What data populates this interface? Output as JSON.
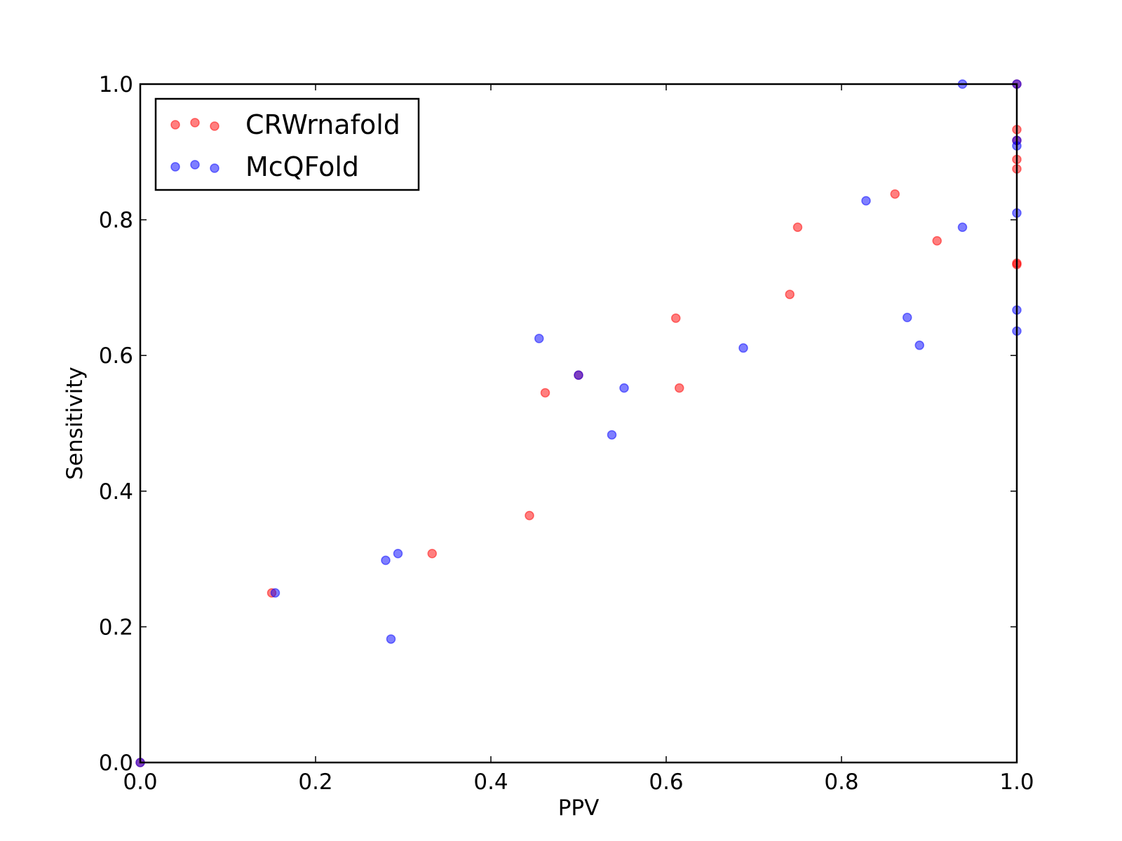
{
  "chart_data": {
    "type": "scatter",
    "title": "",
    "xlabel": "PPV",
    "ylabel": "Sensitivity",
    "xlim": [
      0.0,
      1.0
    ],
    "ylim": [
      0.0,
      1.0
    ],
    "xticks": [
      "0.0",
      "0.2",
      "0.4",
      "0.6",
      "0.8",
      "1.0"
    ],
    "yticks": [
      "0.0",
      "0.2",
      "0.4",
      "0.6",
      "0.8",
      "1.0"
    ],
    "grid": false,
    "legend_position": "top-left",
    "series": [
      {
        "name": "CRWrnafold",
        "color": "#ff0000",
        "points": [
          [
            0.0,
            0.0
          ],
          [
            0.15,
            0.25
          ],
          [
            0.333,
            0.308
          ],
          [
            0.444,
            0.364
          ],
          [
            0.462,
            0.545
          ],
          [
            0.5,
            0.571
          ],
          [
            0.611,
            0.655
          ],
          [
            0.615,
            0.552
          ],
          [
            0.741,
            0.69
          ],
          [
            0.75,
            0.789
          ],
          [
            0.861,
            0.838
          ],
          [
            0.909,
            0.769
          ],
          [
            1.0,
            0.734
          ],
          [
            1.0,
            0.736
          ],
          [
            1.0,
            0.875
          ],
          [
            1.0,
            0.889
          ],
          [
            1.0,
            0.917
          ],
          [
            1.0,
            0.933
          ],
          [
            1.0,
            1.0
          ]
        ]
      },
      {
        "name": "McQFold",
        "color": "#0000ff",
        "points": [
          [
            0.0,
            0.0
          ],
          [
            0.154,
            0.25
          ],
          [
            0.28,
            0.298
          ],
          [
            0.286,
            0.182
          ],
          [
            0.294,
            0.308
          ],
          [
            0.455,
            0.625
          ],
          [
            0.5,
            0.571
          ],
          [
            0.538,
            0.483
          ],
          [
            0.552,
            0.552
          ],
          [
            0.688,
            0.611
          ],
          [
            0.828,
            0.828
          ],
          [
            0.875,
            0.656
          ],
          [
            0.889,
            0.615
          ],
          [
            0.938,
            0.789
          ],
          [
            0.938,
            1.0
          ],
          [
            1.0,
            0.636
          ],
          [
            1.0,
            0.667
          ],
          [
            1.0,
            0.81
          ],
          [
            1.0,
            0.909
          ],
          [
            1.0,
            0.917
          ],
          [
            1.0,
            1.0
          ]
        ]
      }
    ]
  }
}
